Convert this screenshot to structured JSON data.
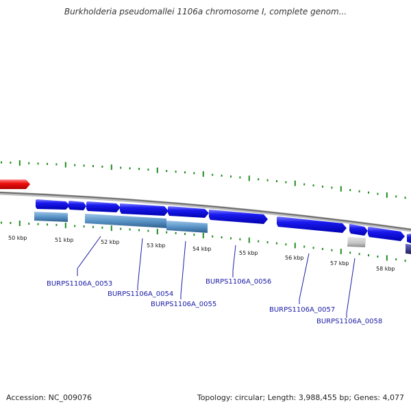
{
  "genome": {
    "title": "Burkholderia pseudomallei 1106a chromosome I, complete genom..."
  },
  "footer": {
    "accession": "Accession: NC_009076",
    "stats": "Topology: circular; Length: 3,988,455 bp; Genes: 4,077"
  },
  "colors": {
    "forward_gene": "#1010e0",
    "reverse_gene": "#4a86c0",
    "feature_red": "#ee1111",
    "feature_gray": "#c8c8c8",
    "chromosome": "#888888",
    "tick": "#1e8c1e",
    "label_text": "#1a1aa6"
  },
  "scale": {
    "kbp_labels": [
      "50 kbp",
      "51 kbp",
      "52 kbp",
      "53 kbp",
      "54 kbp",
      "55 kbp",
      "56 kbp",
      "57 kbp",
      "58 kbp"
    ]
  },
  "gene_labels": [
    "BURPS1106A_0053",
    "BURPS1106A_0054",
    "BURPS1106A_0055",
    "BURPS1106A_0056",
    "BURPS1106A_0057",
    "BURPS1106A_0058"
  ]
}
